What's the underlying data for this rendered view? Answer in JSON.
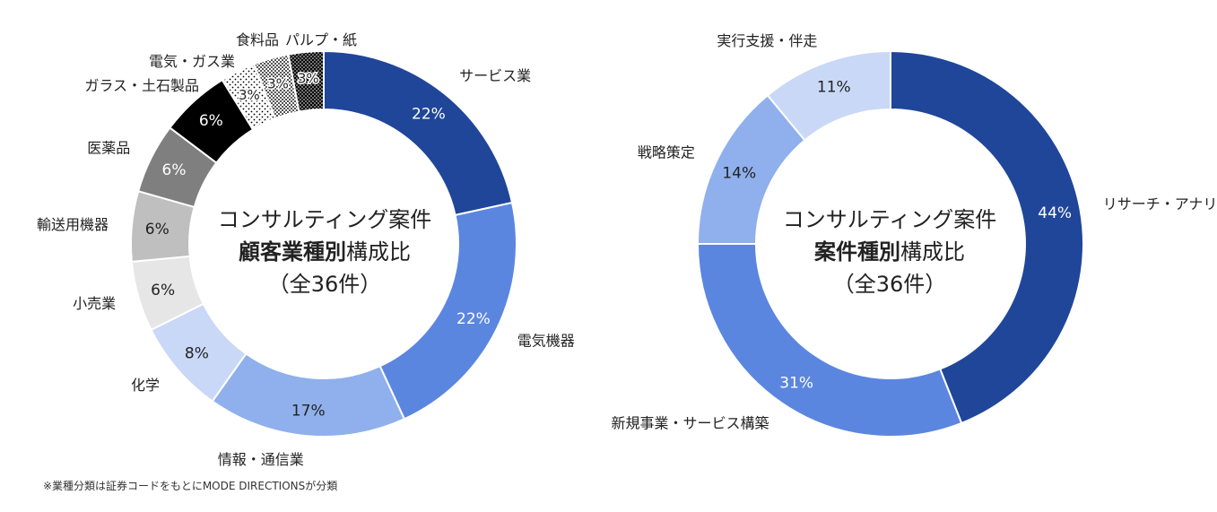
{
  "footnote": "※業種分類は証券コードをもとにMODE DIRECTIONSが分類",
  "colors": {
    "dark_blue": "#1f4699",
    "mid_blue": "#5b86e0",
    "light_blue": "#8fb0ec",
    "pale_blue": "#c9d8f6",
    "black": "#000000",
    "dark_gray": "#7f7f7f",
    "mid_gray": "#bfbfbf",
    "light_gray": "#e6e6e6"
  },
  "chart_data": [
    {
      "type": "pie",
      "donut": true,
      "center_title": {
        "line1": "コンサルティング案件",
        "line2_bold": "顧客業種別",
        "line2_rest": "構成比",
        "line3": "（全36件）"
      },
      "slices": [
        {
          "label": "サービス業",
          "value": 22,
          "value_label": "22%",
          "color": "#1f4699",
          "pattern": "none"
        },
        {
          "label": "電気機器",
          "value": 22,
          "value_label": "22%",
          "color": "#5b86e0",
          "pattern": "none"
        },
        {
          "label": "情報・通信業",
          "value": 17,
          "value_label": "17%",
          "color": "#8fb0ec",
          "pattern": "none"
        },
        {
          "label": "化学",
          "value": 8,
          "value_label": "8%",
          "color": "#c9d8f6",
          "pattern": "none"
        },
        {
          "label": "小売業",
          "value": 6,
          "value_label": "6%",
          "color": "#e6e6e6",
          "pattern": "none"
        },
        {
          "label": "輸送用機器",
          "value": 6,
          "value_label": "6%",
          "color": "#bfbfbf",
          "pattern": "none"
        },
        {
          "label": "医薬品",
          "value": 6,
          "value_label": "6%",
          "color": "#7f7f7f",
          "pattern": "none"
        },
        {
          "label": "ガラス・土石製品",
          "value": 6,
          "value_label": "6%",
          "color": "#000000",
          "pattern": "none"
        },
        {
          "label": "電気・ガス業",
          "value": 3,
          "value_label": "3%",
          "color": "#ffffff",
          "pattern": "dots-sparse"
        },
        {
          "label": "食料品",
          "value": 3,
          "value_label": "3%",
          "color": "#ffffff",
          "pattern": "checker"
        },
        {
          "label": "パルプ・紙",
          "value": 3,
          "value_label": "3%",
          "color": "#ffffff",
          "pattern": "dots-dense"
        }
      ]
    },
    {
      "type": "pie",
      "donut": true,
      "center_title": {
        "line1": "コンサルティング案件",
        "line2_bold": "案件種別",
        "line2_rest": "構成比",
        "line3": "（全36件）"
      },
      "slices": [
        {
          "label": "リサーチ・アナリティクス",
          "value": 44,
          "value_label": "44%",
          "color": "#1f4699",
          "pattern": "none"
        },
        {
          "label": "新規事業・サービス構築",
          "value": 31,
          "value_label": "31%",
          "color": "#5b86e0",
          "pattern": "none"
        },
        {
          "label": "戦略策定",
          "value": 14,
          "value_label": "14%",
          "color": "#8fb0ec",
          "pattern": "none"
        },
        {
          "label": "実行支援・伴走",
          "value": 11,
          "value_label": "11%",
          "color": "#c9d8f6",
          "pattern": "none"
        }
      ]
    }
  ]
}
